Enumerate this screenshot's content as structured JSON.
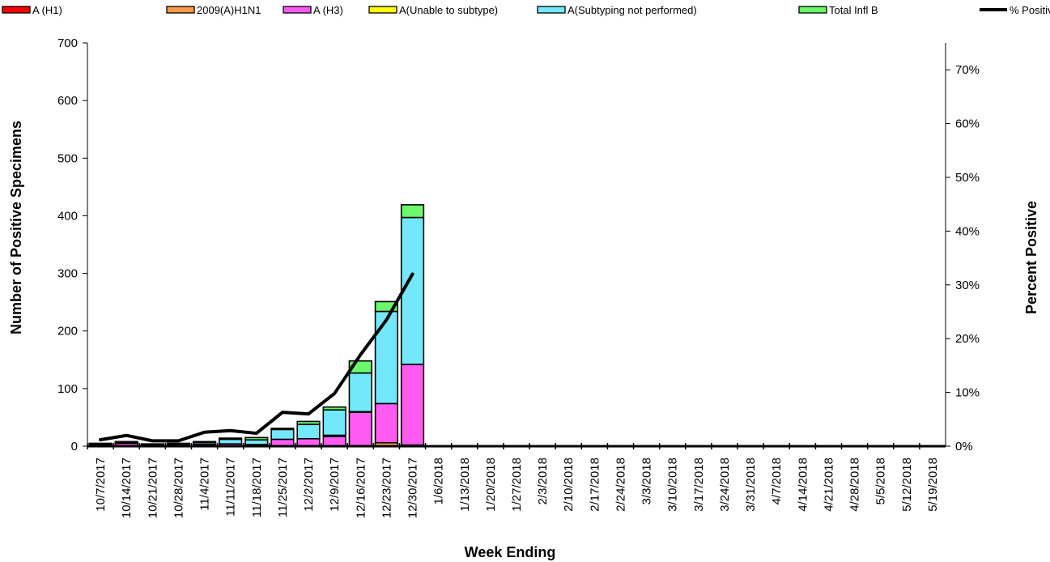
{
  "chart_data": {
    "type": "bar",
    "stacked": true,
    "title": "",
    "xlabel": "Week Ending",
    "ylabel": "Number of  Positive Specimens",
    "y2label": "Percent Positive",
    "ylim": [
      0,
      700
    ],
    "y2lim": [
      0,
      0.75
    ],
    "yticks": [
      "0",
      "100",
      "200",
      "300",
      "400",
      "500",
      "600",
      "700"
    ],
    "y2ticks": [
      "0%",
      "10%",
      "20%",
      "30%",
      "40%",
      "50%",
      "60%",
      "70%"
    ],
    "legend_position": "top",
    "categories": [
      "10/7/2017",
      "10/14/2017",
      "10/21/2017",
      "10/28/2017",
      "11/4/2017",
      "11/11/2017",
      "11/18/2017",
      "11/25/2017",
      "12/2/2017",
      "12/9/2017",
      "12/16/2017",
      "12/23/2017",
      "12/30/2017",
      "1/6/2018",
      "1/13/2018",
      "1/20/2018",
      "1/27/2018",
      "2/3/2018",
      "2/10/2018",
      "2/17/2018",
      "2/24/2018",
      "3/3/2018",
      "3/10/2018",
      "3/17/2018",
      "3/24/2018",
      "3/31/2018",
      "4/7/2018",
      "4/14/2018",
      "4/21/2018",
      "4/28/2018",
      "5/5/2018",
      "5/12/2018",
      "5/19/2018"
    ],
    "series": [
      {
        "name": "A (H1)",
        "color": "#ff0000",
        "values": [
          0,
          0,
          0,
          0,
          0,
          0,
          0,
          0,
          0,
          0,
          0,
          0,
          0,
          0,
          0,
          0,
          0,
          0,
          0,
          0,
          0,
          0,
          0,
          0,
          0,
          0,
          0,
          0,
          0,
          0,
          0,
          0,
          0
        ]
      },
      {
        "name": "2009(A)H1N1",
        "color": "#ff9a4d",
        "values": [
          0,
          0,
          0,
          0,
          0,
          0,
          0,
          0,
          0,
          0,
          1,
          6,
          2,
          0,
          0,
          0,
          0,
          0,
          0,
          0,
          0,
          0,
          0,
          0,
          0,
          0,
          0,
          0,
          0,
          0,
          0,
          0,
          0
        ]
      },
      {
        "name": "A (H3)",
        "color": "#ff5bf2",
        "values": [
          3,
          5,
          2,
          3,
          3,
          4,
          3,
          12,
          13,
          17,
          58,
          68,
          140,
          0,
          0,
          0,
          0,
          0,
          0,
          0,
          0,
          0,
          0,
          0,
          0,
          0,
          0,
          0,
          0,
          0,
          0,
          0,
          0
        ]
      },
      {
        "name": "A(Unable to subtype)",
        "color": "#ffff00",
        "values": [
          0,
          0,
          0,
          0,
          0,
          0,
          0,
          0,
          0,
          2,
          1,
          0,
          0,
          0,
          0,
          0,
          0,
          0,
          0,
          0,
          0,
          0,
          0,
          0,
          0,
          0,
          0,
          0,
          0,
          0,
          0,
          0,
          0
        ]
      },
      {
        "name": "A(Subtyping not performed)",
        "color": "#74e8fb",
        "values": [
          1,
          2,
          1,
          1,
          3,
          8,
          8,
          17,
          25,
          44,
          67,
          160,
          255,
          0,
          0,
          0,
          0,
          0,
          0,
          0,
          0,
          0,
          0,
          0,
          0,
          0,
          0,
          0,
          0,
          0,
          0,
          0,
          0
        ]
      },
      {
        "name": "Total Infl B",
        "color": "#6bf86b",
        "values": [
          1,
          1,
          1,
          1,
          2,
          2,
          4,
          2,
          5,
          5,
          21,
          17,
          22,
          0,
          0,
          0,
          0,
          0,
          0,
          0,
          0,
          0,
          0,
          0,
          0,
          0,
          0,
          0,
          0,
          0,
          0,
          0,
          0
        ]
      }
    ],
    "line": {
      "name": "% Positive",
      "color": "#000000",
      "values": [
        0.012,
        0.02,
        0.01,
        0.01,
        0.026,
        0.029,
        0.024,
        0.063,
        0.06,
        0.098,
        0.17,
        0.235,
        0.32
      ]
    }
  }
}
